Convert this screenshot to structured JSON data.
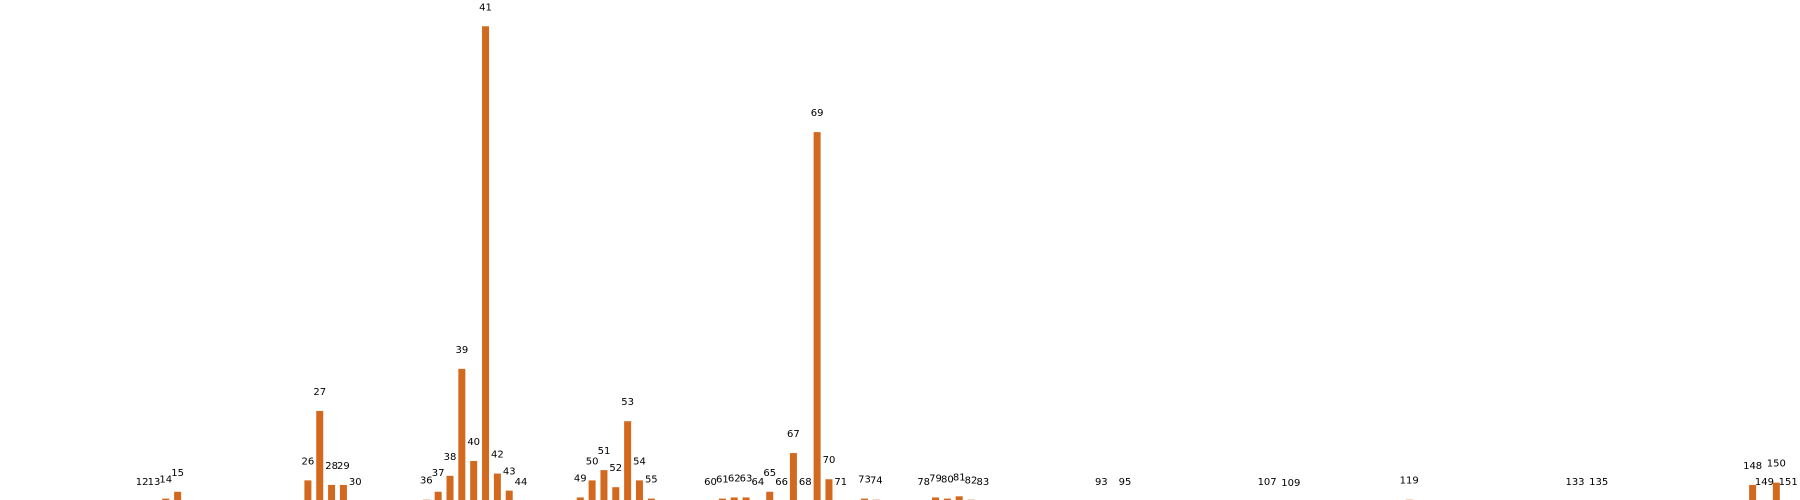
{
  "chart_data": {
    "type": "bar",
    "title": "",
    "xlabel": "",
    "ylabel": "",
    "grid": false,
    "legend": "none",
    "axes_visible": false,
    "bar_color": "#d2691e",
    "categories": [
      12,
      13,
      14,
      15,
      26,
      27,
      28,
      29,
      30,
      36,
      37,
      38,
      39,
      40,
      41,
      42,
      43,
      44,
      49,
      50,
      51,
      52,
      53,
      54,
      55,
      60,
      61,
      62,
      63,
      64,
      65,
      66,
      67,
      68,
      69,
      70,
      71,
      73,
      74,
      78,
      79,
      80,
      81,
      82,
      83,
      93,
      95,
      107,
      109,
      119,
      133,
      135,
      148,
      149,
      150,
      151
    ],
    "x_range": [
      0,
      152
    ],
    "ylim": [
      0,
      420
    ],
    "values": [
      1,
      1,
      3,
      9,
      19,
      80,
      15,
      15,
      1,
      2,
      9,
      23,
      117,
      36,
      418,
      25,
      10,
      1,
      4,
      19,
      28,
      13,
      71,
      19,
      3,
      1,
      3,
      4,
      4,
      1,
      9,
      1,
      43,
      1,
      325,
      20,
      1,
      3,
      2,
      1,
      4,
      3,
      5,
      2,
      1,
      1,
      1,
      1,
      0,
      2,
      1,
      1,
      15,
      1,
      17,
      1
    ]
  }
}
